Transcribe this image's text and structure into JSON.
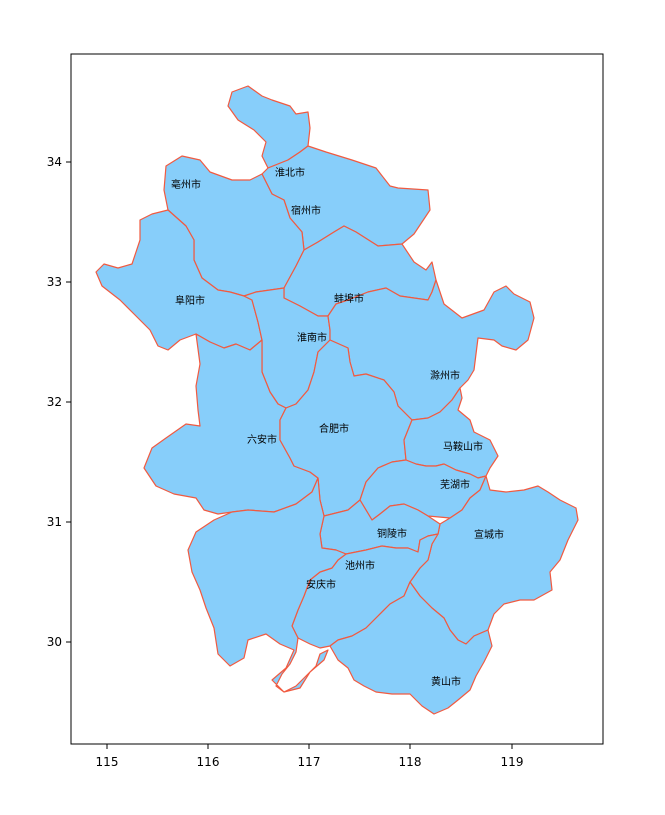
{
  "map": {
    "x_ticks": [
      "115",
      "116",
      "117",
      "118",
      "119"
    ],
    "y_ticks": [
      "30",
      "31",
      "32",
      "33",
      "34"
    ],
    "colors": {
      "fill": "#87cefa",
      "border": "#f15a40",
      "frame": "#000000"
    },
    "cities": [
      {
        "id": "huaibei",
        "name": "淮北市"
      },
      {
        "id": "bozhou",
        "name": "亳州市"
      },
      {
        "id": "suzhou",
        "name": "宿州市"
      },
      {
        "id": "fuyang",
        "name": "阜阳市"
      },
      {
        "id": "bengbu",
        "name": "蚌埠市"
      },
      {
        "id": "huainan",
        "name": "淮南市"
      },
      {
        "id": "chuzhou",
        "name": "滁州市"
      },
      {
        "id": "luan",
        "name": "六安市"
      },
      {
        "id": "hefei",
        "name": "合肥市"
      },
      {
        "id": "maanshan",
        "name": "马鞍山市"
      },
      {
        "id": "wuhu",
        "name": "芜湖市"
      },
      {
        "id": "xuancheng",
        "name": "宣城市"
      },
      {
        "id": "tongling",
        "name": "铜陵市"
      },
      {
        "id": "chizhou",
        "name": "池州市"
      },
      {
        "id": "anqing",
        "name": "安庆市"
      },
      {
        "id": "huangshan",
        "name": "黄山市"
      }
    ]
  }
}
